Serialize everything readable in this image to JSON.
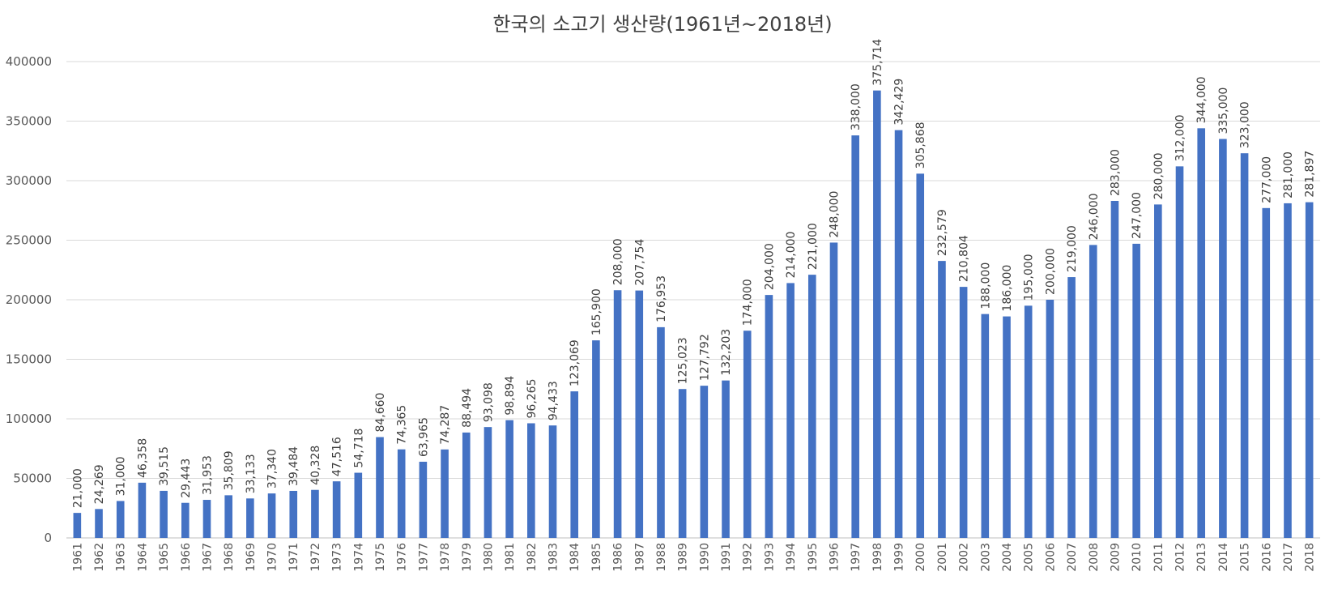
{
  "chart_data": {
    "type": "bar",
    "title": "한국의 소고기 생산량(1961년~2018년)",
    "xlabel": "",
    "ylabel": "",
    "ylim": [
      0,
      400000
    ],
    "yticks": [
      0,
      50000,
      100000,
      150000,
      200000,
      250000,
      300000,
      350000,
      400000
    ],
    "ytick_labels": [
      "0",
      "50000",
      "100000",
      "150000",
      "200000",
      "250000",
      "300000",
      "350000",
      "400000"
    ],
    "grid": true,
    "bar_color": "#4472C4",
    "categories": [
      "1961",
      "1962",
      "1963",
      "1964",
      "1965",
      "1966",
      "1967",
      "1968",
      "1969",
      "1970",
      "1971",
      "1972",
      "1973",
      "1974",
      "1975",
      "1976",
      "1977",
      "1978",
      "1979",
      "1980",
      "1981",
      "1982",
      "1983",
      "1984",
      "1985",
      "1986",
      "1987",
      "1988",
      "1989",
      "1990",
      "1991",
      "1992",
      "1993",
      "1994",
      "1995",
      "1996",
      "1997",
      "1998",
      "1999",
      "2000",
      "2001",
      "2002",
      "2003",
      "2004",
      "2005",
      "2006",
      "2007",
      "2008",
      "2009",
      "2010",
      "2011",
      "2012",
      "2013",
      "2014",
      "2015",
      "2016",
      "2017",
      "2018"
    ],
    "values": [
      21000,
      24269,
      31000,
      46358,
      39515,
      29443,
      31953,
      35809,
      33133,
      37340,
      39484,
      40328,
      47516,
      54718,
      84660,
      74365,
      63965,
      74287,
      88494,
      93098,
      98894,
      96265,
      94433,
      123069,
      165900,
      208000,
      207754,
      176953,
      125023,
      127792,
      132203,
      174000,
      204000,
      214000,
      221000,
      248000,
      338000,
      375714,
      342429,
      305868,
      232579,
      210804,
      188000,
      186000,
      195000,
      200000,
      219000,
      246000,
      283000,
      247000,
      280000,
      312000,
      344000,
      335000,
      323000,
      277000,
      281000,
      281897
    ],
    "data_labels": [
      "21,000",
      "24,269",
      "31,000",
      "46,358",
      "39,515",
      "29,443",
      "31,953",
      "35,809",
      "33,133",
      "37,340",
      "39,484",
      "40,328",
      "47,516",
      "54,718",
      "84,660",
      "74,365",
      "63,965",
      "74,287",
      "88,494",
      "93,098",
      "98,894",
      "96,265",
      "94,433",
      "123,069",
      "165,900",
      "208,000",
      "207,754",
      "176,953",
      "125,023",
      "127,792",
      "132,203",
      "174,000",
      "204,000",
      "214,000",
      "221,000",
      "248,000",
      "338,000",
      "375,714",
      "342,429",
      "305,868",
      "232,579",
      "210,804",
      "188,000",
      "186,000",
      "195,000",
      "200,000",
      "219,000",
      "246,000",
      "283,000",
      "247,000",
      "280,000",
      "312,000",
      "344,000",
      "335,000",
      "323,000",
      "277,000",
      "281,000",
      "281,897"
    ]
  }
}
